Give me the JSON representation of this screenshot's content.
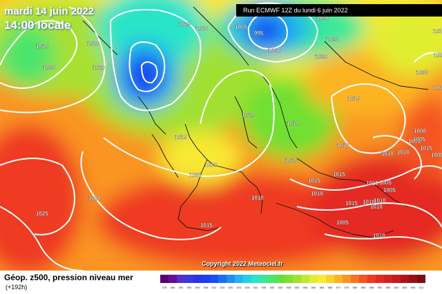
{
  "header": {
    "date": "mardi 14 juin 2022",
    "time": "14:00 locale"
  },
  "run_info": "Run ECMWF 12Z du lundi 6 juin 2022",
  "copyright": "Copyright 2022 Meteociel.fr",
  "legend": {
    "title": "Géop. z500, pression niveau mer",
    "forecast_hour": "(+192h)",
    "ticks": [
      "476",
      "484",
      "492",
      "500",
      "504",
      "508",
      "512",
      "516",
      "520",
      "524",
      "528",
      "532",
      "536",
      "540",
      "544",
      "548",
      "552",
      "556",
      "560",
      "564",
      "568",
      "572",
      "576",
      "580",
      "584",
      "588",
      "592",
      "596",
      "600",
      "604",
      "608",
      "612"
    ],
    "colors": [
      "#5c0070",
      "#6a0c9a",
      "#5a2cc8",
      "#3a3ad8",
      "#2a32e6",
      "#1a40f0",
      "#1650f0",
      "#1c6ef0",
      "#1e90f2",
      "#22b4f0",
      "#24d0e8",
      "#2ce4c8",
      "#38e89a",
      "#4ce46c",
      "#60e040",
      "#80e030",
      "#a0e030",
      "#c0e830",
      "#e0ee30",
      "#f8ea30",
      "#fcd028",
      "#fcb424",
      "#fa9420",
      "#f87420",
      "#f45420",
      "#ee3a20",
      "#e42a20",
      "#d82220",
      "#c81a1c",
      "#b01418",
      "#981014",
      "#800c10"
    ]
  },
  "isobars": [
    {
      "label": "1010"
    },
    {
      "label": "1005"
    },
    {
      "label": "1020"
    },
    {
      "label": "1020"
    },
    {
      "label": "1025"
    },
    {
      "label": "1020"
    },
    {
      "label": "1005"
    },
    {
      "label": "995"
    },
    {
      "label": "1000"
    },
    {
      "label": "1000"
    },
    {
      "label": "1005"
    },
    {
      "label": "1000"
    },
    {
      "label": "1010"
    },
    {
      "label": "1000"
    },
    {
      "label": "1005"
    },
    {
      "label": "1020"
    },
    {
      "label": "1015"
    },
    {
      "label": "1010"
    },
    {
      "label": "1010"
    },
    {
      "label": "1015"
    },
    {
      "label": "1010"
    },
    {
      "label": "1005"
    },
    {
      "label": "1015"
    },
    {
      "label": "1010"
    },
    {
      "label": "1005"
    },
    {
      "label": "1010"
    },
    {
      "label": "1005"
    },
    {
      "label": "1015"
    },
    {
      "label": "1010"
    },
    {
      "label": "1020"
    },
    {
      "label": "1025"
    },
    {
      "label": "1015"
    },
    {
      "label": "1010"
    },
    {
      "label": "1015"
    },
    {
      "label": "1010"
    },
    {
      "label": "1010"
    },
    {
      "label": "1005"
    },
    {
      "label": "1005"
    },
    {
      "label": "1000"
    },
    {
      "label": "1000"
    },
    {
      "label": "1005"
    },
    {
      "label": "1010"
    },
    {
      "label": "1010"
    },
    {
      "label": "1015"
    },
    {
      "label": "1005"
    },
    {
      "label": "1015"
    },
    {
      "label": "1010"
    }
  ]
}
